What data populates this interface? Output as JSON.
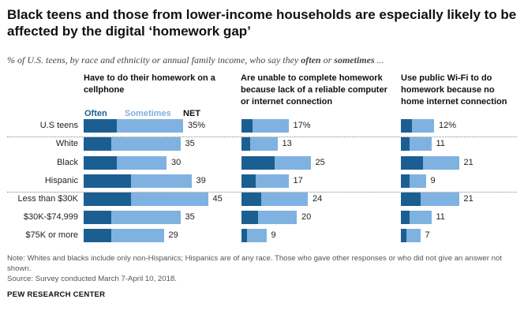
{
  "title": "Black teens and those from lower-income households are especially likely to be affected by the digital ‘homework gap’",
  "subtitle": {
    "prefix": "% of U.S. teens, by race and ethnicity or annual family income, who say they ",
    "often": "often",
    "middle": " or ",
    "sometimes": "sometimes",
    "suffix": " ..."
  },
  "colors": {
    "often": "#1b5e92",
    "sometimes": "#7fb2e0"
  },
  "legend": {
    "often": "Often",
    "sometimes": "Sometimes",
    "net": "NET"
  },
  "note": "Note: Whites and blacks include only non-Hispanics; Hispanics are of any race. Those who gave other responses or who did not give an answer not shown.",
  "source": "Source: Survey conducted March 7-April 10, 2018.",
  "brand": "PEW RESEARCH CENTER",
  "chart_data": {
    "type": "bar",
    "stacked": true,
    "orientation": "horizontal",
    "categories": [
      "U.S teens",
      "White",
      "Black",
      "Hispanic",
      "Less than $30K",
      "$30K-$74,999",
      "$75K or more"
    ],
    "panels": [
      {
        "title": "Have to do their homework on a cellphone",
        "series": [
          {
            "name": "Often",
            "values": [
              12,
              10,
              12,
              17,
              17,
              10,
              10
            ]
          },
          {
            "name": "Sometimes",
            "values": [
              24,
              25,
              18,
              22,
              28,
              25,
              19
            ]
          }
        ],
        "net": [
          "35%",
          "35",
          "30",
          "39",
          "45",
          "35",
          "29"
        ]
      },
      {
        "title": "Are unable to complete homework because lack of a reliable computer or internet connection",
        "series": [
          {
            "name": "Often",
            "values": [
              4,
              3,
              12,
              5,
              7,
              6,
              2
            ]
          },
          {
            "name": "Sometimes",
            "values": [
              13,
              10,
              13,
              12,
              17,
              14,
              7
            ]
          }
        ],
        "net": [
          "17%",
          "13",
          "25",
          "17",
          "24",
          "20",
          "9"
        ]
      },
      {
        "title": "Use public Wi-Fi to do homework because no home internet connection",
        "series": [
          {
            "name": "Often",
            "values": [
              4,
              3,
              8,
              3,
              7,
              3,
              2
            ]
          },
          {
            "name": "Sometimes",
            "values": [
              8,
              8,
              13,
              6,
              14,
              8,
              5
            ]
          }
        ],
        "net": [
          "12%",
          "11",
          "21",
          "9",
          "21",
          "11",
          "7"
        ]
      }
    ]
  }
}
